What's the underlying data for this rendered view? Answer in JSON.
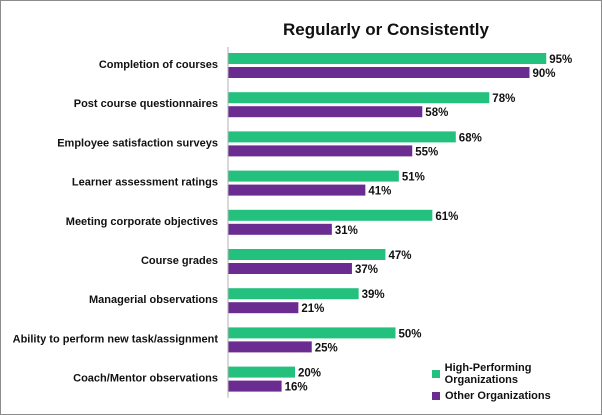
{
  "chart_data": {
    "type": "bar",
    "orientation": "horizontal",
    "title": "Regularly or Consistently",
    "xlabel": "",
    "ylabel": "",
    "xlim": [
      0,
      100
    ],
    "grid": false,
    "legend_position": "bottom-right",
    "categories": [
      "Completion of courses",
      "Post course questionnaires",
      "Employee satisfaction surveys",
      "Learner assessment ratings",
      "Meeting corporate objectives",
      "Course grades",
      "Managerial observations",
      "Ability to perform new task/assignment",
      "Coach/Mentor observations"
    ],
    "series": [
      {
        "name": "High-Performing Organizations",
        "color": "#24c07e",
        "values": [
          95,
          78,
          68,
          51,
          61,
          47,
          39,
          50,
          20
        ],
        "labels": [
          "95%",
          "78%",
          "68%",
          "51%",
          "61%",
          "47%",
          "39%",
          "50%",
          "20%"
        ]
      },
      {
        "name": "Other Organizations",
        "color": "#6b2c91",
        "values": [
          90,
          58,
          55,
          41,
          31,
          37,
          21,
          25,
          16
        ],
        "labels": [
          "90%",
          "58%",
          "55%",
          "41%",
          "31%",
          "37%",
          "21%",
          "25%",
          "16%"
        ]
      }
    ]
  }
}
